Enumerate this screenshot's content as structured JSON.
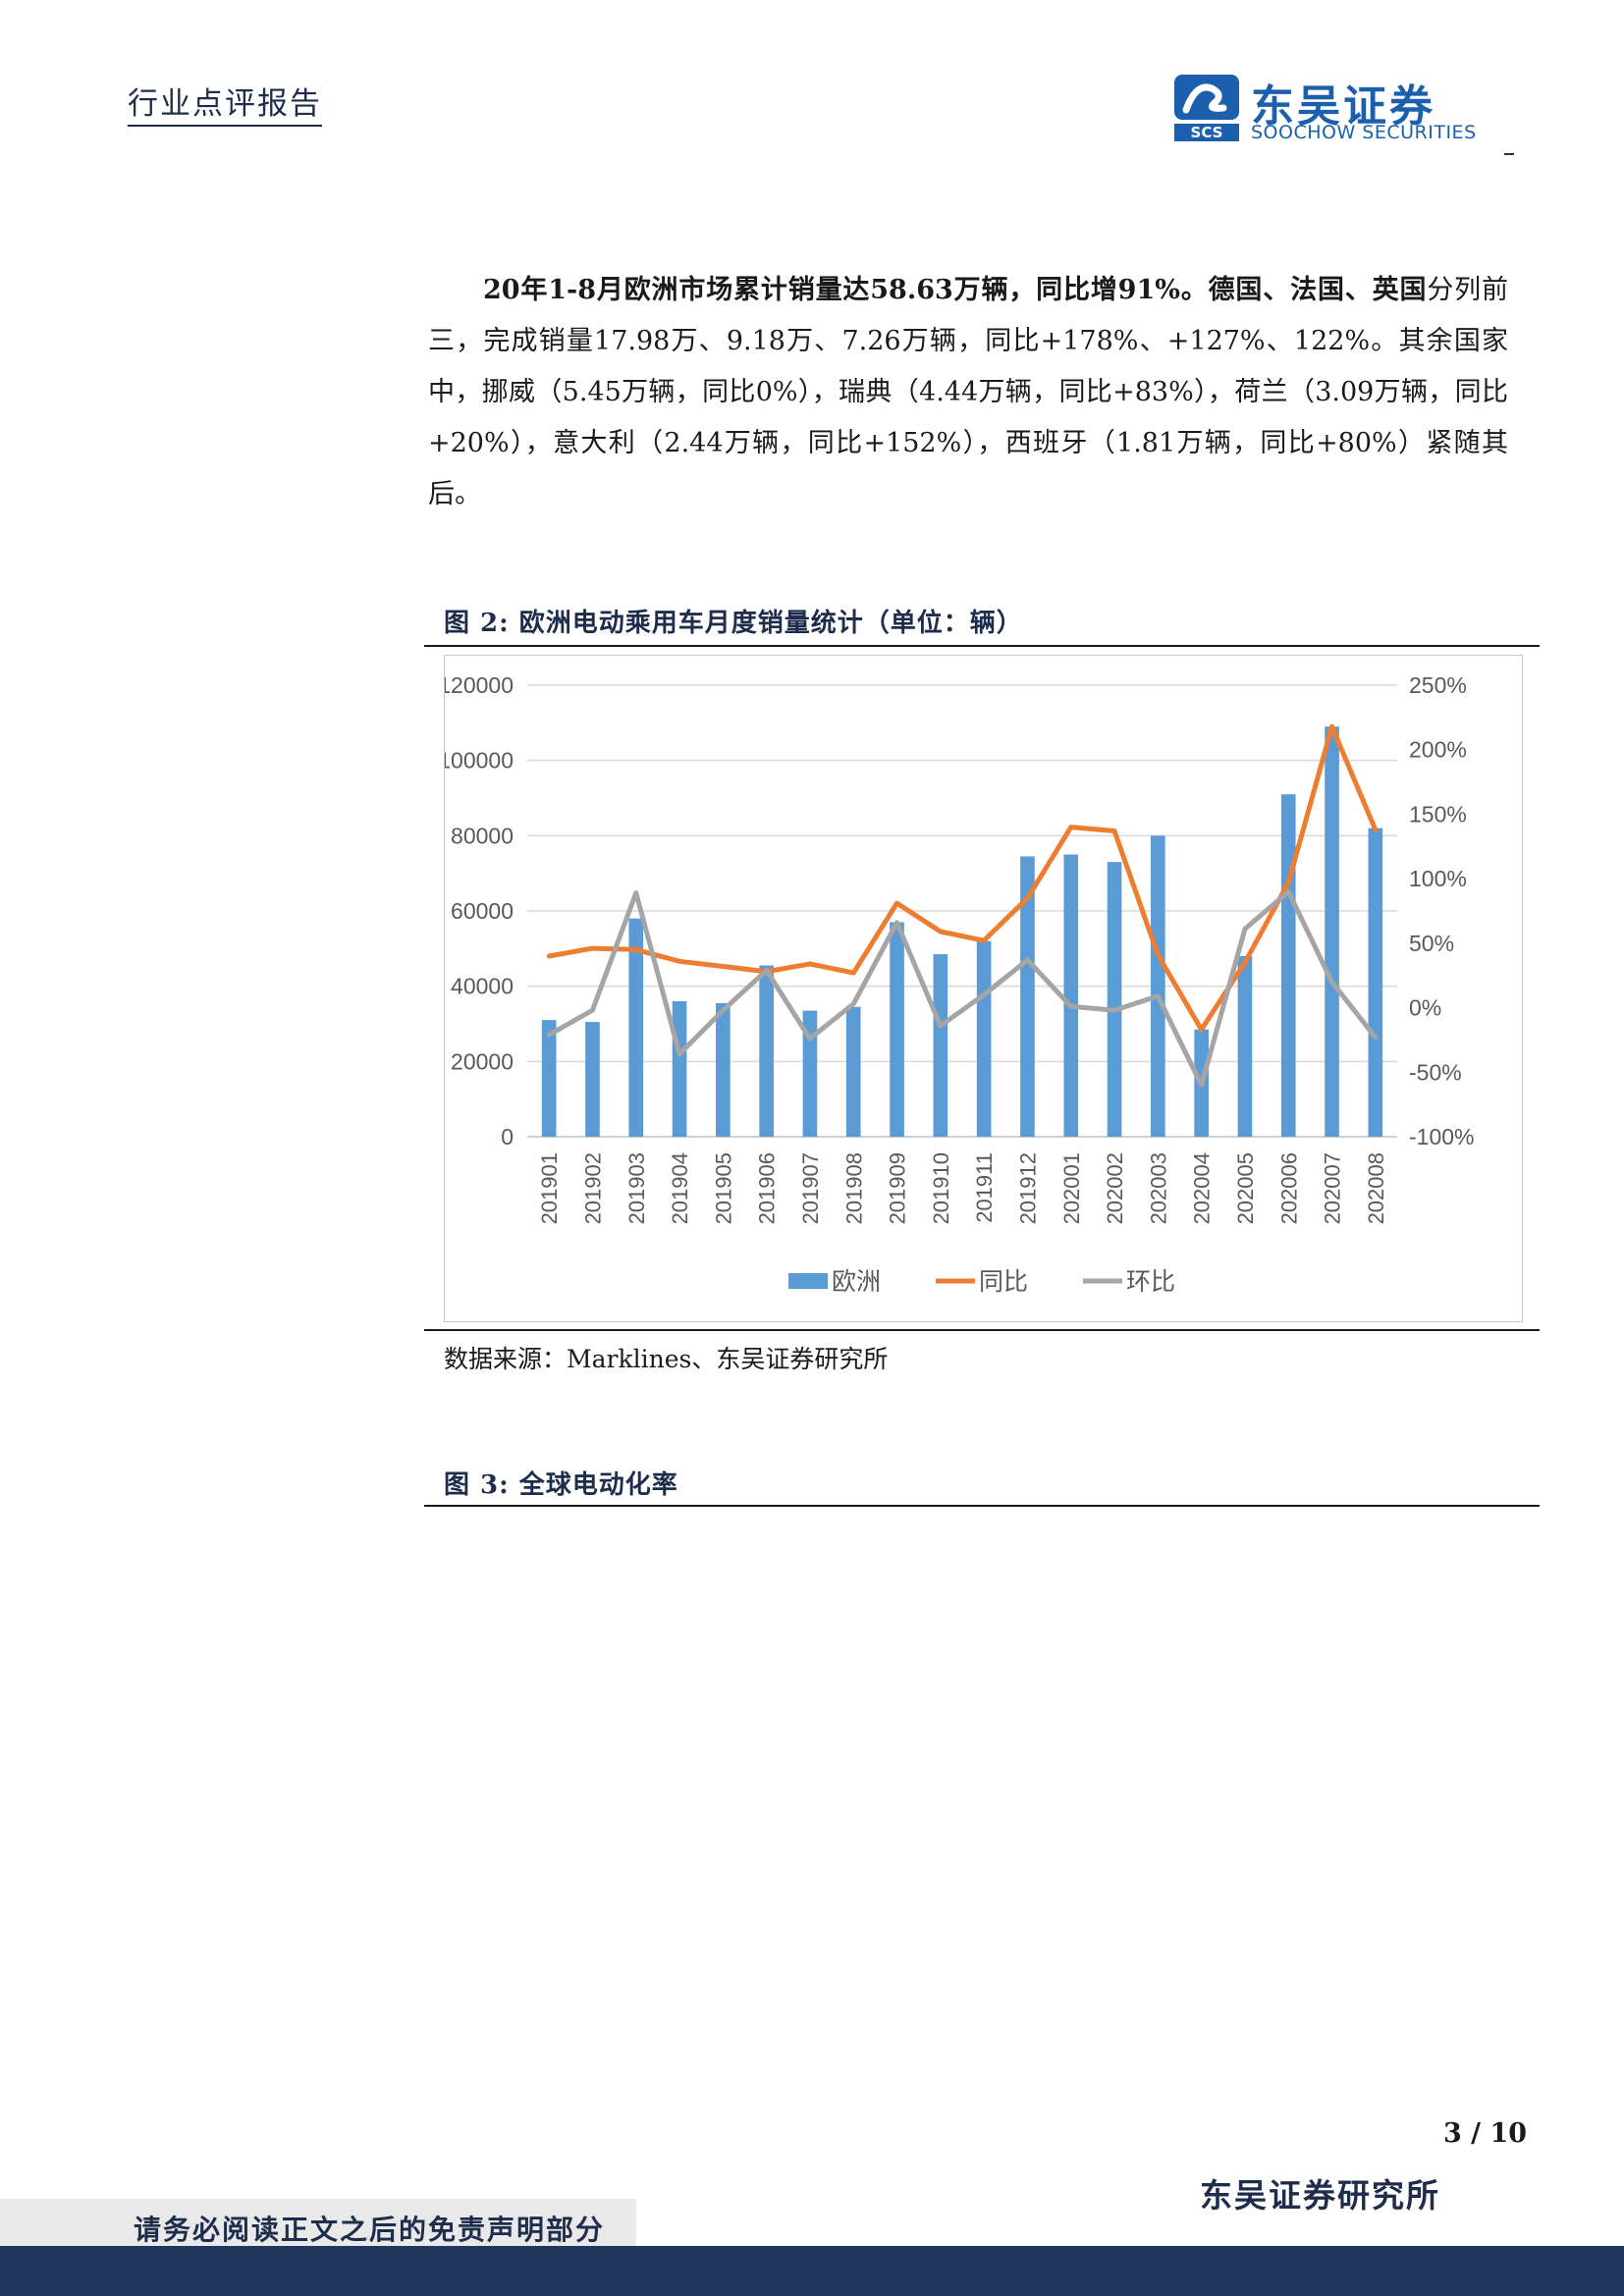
{
  "header": {
    "report_type": "行业点评报告"
  },
  "logo": {
    "name_cn": "东吴证券",
    "name_en": "SOOCHOW SECURITIES",
    "mark_text": "SCS",
    "color": "#1b5fad"
  },
  "body": {
    "lead": "20年1-8月欧洲市场累计销量达58.63万辆，同比增91%。德国、法国、英国",
    "rest": "分列前三，完成销量17.98万、9.18万、7.26万辆，同比+178%、+127%、122%。其余国家中，挪威（5.45万辆，同比0%），瑞典（4.44万辆，同比+83%），荷兰（3.09万辆，同比+20%），意大利（2.44万辆，同比+152%），西班牙（1.81万辆，同比+80%）紧随其后。"
  },
  "figure2": {
    "caption": "图 2:  欧洲电动乘用车月度销量统计（单位：辆）",
    "source": "数据来源：Marklines、东吴证券研究所"
  },
  "figure3": {
    "caption": "图 3:  全球电动化率"
  },
  "chart_data": {
    "type": "bar",
    "categories": [
      "201901",
      "201902",
      "201903",
      "201904",
      "201905",
      "201906",
      "201907",
      "201908",
      "201909",
      "201910",
      "201911",
      "201912",
      "202001",
      "202002",
      "202003",
      "202004",
      "202005",
      "202006",
      "202007",
      "202008"
    ],
    "series": [
      {
        "name": "欧洲",
        "type": "bar",
        "axis": "left",
        "color": "#5b9bd5",
        "values": [
          31000,
          30500,
          58000,
          36000,
          35500,
          45500,
          33500,
          34500,
          57000,
          48500,
          52000,
          74500,
          75000,
          73000,
          80000,
          28500,
          48000,
          91000,
          109000,
          82000
        ]
      },
      {
        "name": "同比",
        "type": "line",
        "axis": "right",
        "color": "#ed7d31",
        "values": [
          0.4,
          0.46,
          0.45,
          0.36,
          0.32,
          0.28,
          0.34,
          0.27,
          0.81,
          0.59,
          0.52,
          0.85,
          1.4,
          1.37,
          0.41,
          -0.17,
          0.35,
          0.97,
          2.18,
          1.38
        ]
      },
      {
        "name": "环比",
        "type": "line",
        "axis": "right",
        "color": "#a5a5a5",
        "values": [
          -0.21,
          -0.02,
          0.89,
          -0.36,
          -0.02,
          0.29,
          -0.24,
          0.03,
          0.66,
          -0.14,
          0.1,
          0.37,
          0.01,
          -0.02,
          0.09,
          -0.6,
          0.61,
          0.9,
          0.2,
          -0.23
        ]
      }
    ],
    "y_left": {
      "min": 0,
      "max": 120000,
      "ticks": [
        "0",
        "20000",
        "40000",
        "60000",
        "80000",
        "100000",
        "120000"
      ]
    },
    "y_right": {
      "min": -1.0,
      "max": 2.5,
      "ticks": [
        "-100%",
        "-50%",
        "0%",
        "50%",
        "100%",
        "150%",
        "200%",
        "250%"
      ]
    },
    "grid": true,
    "legend": "bottom"
  },
  "footer": {
    "page": "3 / 10",
    "org": "东吴证券研究所",
    "disclaimer": "请务必阅读正文之后的免责声明部分"
  }
}
